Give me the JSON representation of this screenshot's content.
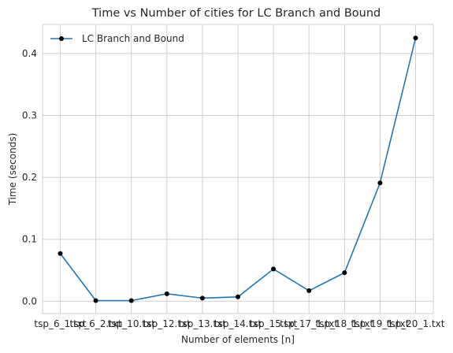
{
  "chart_data": {
    "type": "line",
    "title": "Time vs Number of cities for LC Branch and Bound",
    "xlabel": "Number of elements [n]",
    "ylabel": "Time (seconds)",
    "categories": [
      "tsp_6_1.txt",
      "tsp_6_2.txt",
      "tsp_10.txt",
      "tsp_12.txt",
      "tsp_13.txt",
      "tsp_14.txt",
      "tsp_15.txt",
      "tsp_17_1.txt",
      "tsp_18_1.txt",
      "tsp_19_1.txt",
      "tsp_20_1.txt"
    ],
    "series": [
      {
        "name": "LC Branch and Bound",
        "values": [
          0.077,
          0.001,
          0.001,
          0.012,
          0.005,
          0.007,
          0.052,
          0.017,
          0.046,
          0.191,
          0.425
        ],
        "color": "#1f77b4",
        "marker": "circle",
        "marker_color": "#000000"
      }
    ],
    "ylim": [
      -0.02,
      0.447
    ],
    "yticks": [
      0.0,
      0.1,
      0.2,
      0.3,
      0.4
    ],
    "ytick_labels": [
      "0.0",
      "0.1",
      "0.2",
      "0.3",
      "0.4"
    ],
    "grid": true,
    "legend_position": "top-left"
  }
}
